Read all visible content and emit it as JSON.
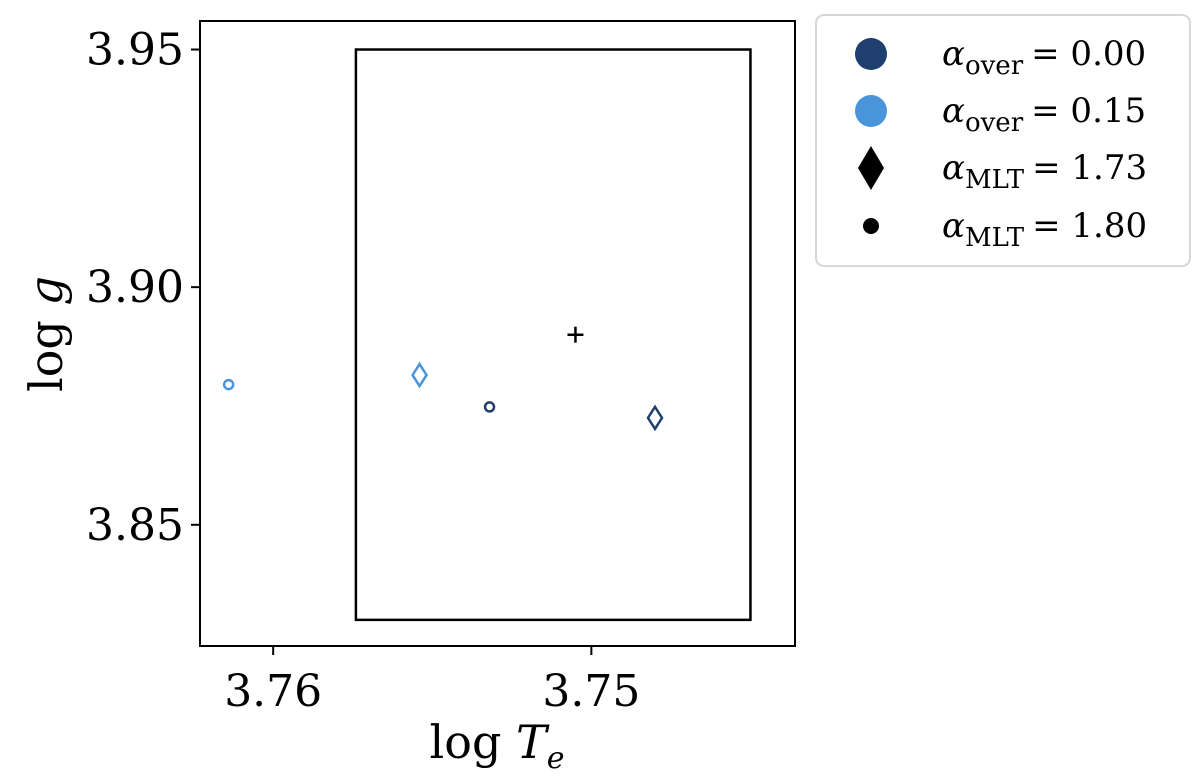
{
  "chart_data": {
    "type": "scatter",
    "xlabel": "log Te",
    "ylabel": "log g",
    "x_axis_inverted": true,
    "xlim": [
      3.7623,
      3.7436
    ],
    "ylim": [
      3.8245,
      3.956
    ],
    "x_ticks": [
      {
        "value": 3.76,
        "label": "3.76"
      },
      {
        "value": 3.75,
        "label": "3.75"
      }
    ],
    "y_ticks": [
      {
        "value": 3.95,
        "label": "3.95"
      },
      {
        "value": 3.9,
        "label": "3.90"
      },
      {
        "value": 3.85,
        "label": "3.85"
      }
    ],
    "grid": false,
    "legend_position": "outside-top-right",
    "colors": {
      "alpha_over_0_00": "#1f3f6e",
      "alpha_over_0_15": "#4a94db",
      "target": "#000000"
    },
    "box": {
      "x": [
        3.7574,
        3.745
      ],
      "y": [
        3.83,
        3.95
      ]
    },
    "target": {
      "x": 3.7505,
      "y": 3.89,
      "marker": "plus"
    },
    "points": [
      {
        "x": 3.7614,
        "y": 3.8795,
        "marker": "circle",
        "color_key": "alpha_over_0_15",
        "alpha_over": "0.15",
        "alpha_mlt": "1.80"
      },
      {
        "x": 3.7554,
        "y": 3.8815,
        "marker": "diamond",
        "color_key": "alpha_over_0_15",
        "alpha_over": "0.15",
        "alpha_mlt": "1.73"
      },
      {
        "x": 3.7532,
        "y": 3.8748,
        "marker": "circle",
        "color_key": "alpha_over_0_00",
        "alpha_over": "0.00",
        "alpha_mlt": "1.80"
      },
      {
        "x": 3.748,
        "y": 3.8725,
        "marker": "diamond",
        "color_key": "alpha_over_0_00",
        "alpha_over": "0.00",
        "alpha_mlt": "1.73"
      }
    ],
    "legend": [
      {
        "symbol": "",
        "sub": "over",
        "value": "= 0.00",
        "marker": "circle-large",
        "color_key": "alpha_over_0_00"
      },
      {
        "symbol": "",
        "sub": "over",
        "value": "= 0.15",
        "marker": "circle-large",
        "color_key": "alpha_over_0_15"
      },
      {
        "symbol": "",
        "sub": "MLT",
        "value": "= 1.73",
        "marker": "diamond-filled",
        "color_key": "target"
      },
      {
        "symbol": "",
        "sub": "MLT",
        "value": "= 1.80",
        "marker": "circle-small",
        "color_key": "target"
      }
    ],
    "greek_alpha": "α",
    "xlabel_parts": {
      "main": "log ",
      "var": "T",
      "sub": "e"
    },
    "ylabel_parts": {
      "main": "log ",
      "var": "g"
    }
  }
}
